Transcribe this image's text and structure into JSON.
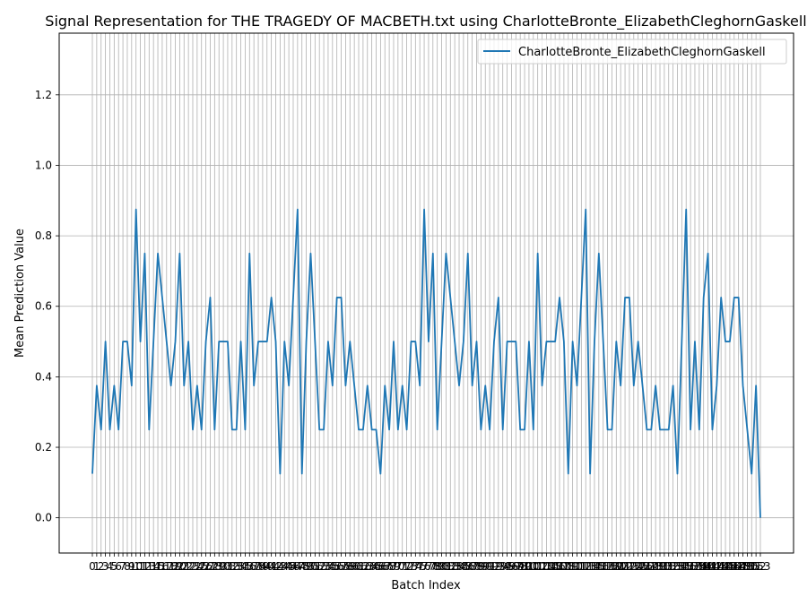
{
  "chart_data": {
    "type": "line",
    "title": "Signal Representation for THE TRAGEDY OF MACBETH.txt using CharlotteBronte_ElizabethCleghornGaskell",
    "xlabel": "Batch Index",
    "ylabel": "Mean Prediction Value",
    "ylim": [
      -0.1,
      1.375
    ],
    "yticks": [
      "0.0",
      "0.2",
      "0.4",
      "0.6",
      "0.8",
      "1.0",
      "1.2"
    ],
    "grid": true,
    "legend_position": "top-right",
    "series": [
      {
        "name": "CharlotteBronte_ElizabethCleghornGaskell",
        "color": "#1f77b4",
        "x": [
          0,
          1,
          2,
          3,
          4,
          5,
          6,
          7,
          8,
          9,
          10,
          11,
          12,
          13,
          14,
          15,
          16,
          17,
          18,
          19,
          20,
          21,
          22,
          23,
          24,
          25,
          26,
          27,
          28,
          29,
          30,
          31,
          32,
          33,
          34,
          35,
          36,
          37,
          38,
          39,
          40,
          41,
          42,
          43,
          44,
          45,
          46,
          47,
          48,
          49,
          50,
          51,
          52,
          53,
          54,
          55,
          56,
          57,
          58,
          59,
          60,
          61,
          62,
          63,
          64,
          65,
          66,
          67,
          68,
          69,
          70,
          71,
          72,
          73,
          74,
          75,
          76,
          77,
          78,
          79,
          80,
          81,
          82,
          83,
          84,
          85,
          86,
          87,
          88,
          89,
          90,
          91,
          92,
          93,
          94,
          95,
          96,
          97,
          98,
          99,
          100,
          101,
          102,
          103,
          104,
          105,
          106,
          107,
          108,
          109,
          110,
          111,
          112,
          113,
          114,
          115,
          116,
          117,
          118,
          119,
          120,
          121,
          122,
          123,
          124,
          125,
          126,
          127,
          128,
          129,
          130,
          131,
          132,
          133,
          134,
          135,
          136,
          137,
          138,
          139,
          140,
          141,
          142,
          143,
          144,
          145,
          146,
          147,
          148,
          149,
          150,
          151,
          152,
          153
        ],
        "values": [
          0.125,
          0.375,
          0.25,
          0.5,
          0.25,
          0.375,
          0.25,
          0.5,
          0.5,
          0.375,
          0.875,
          0.5,
          0.75,
          0.25,
          0.5,
          0.75,
          0.625,
          0.5,
          0.375,
          0.5,
          0.75,
          0.375,
          0.5,
          0.25,
          0.375,
          0.25,
          0.5,
          0.625,
          0.25,
          0.5,
          0.5,
          0.5,
          0.25,
          0.25,
          0.5,
          0.25,
          0.75,
          0.375,
          0.5,
          0.5,
          0.5,
          0.625,
          0.5,
          0.125,
          0.5,
          0.375,
          0.625,
          0.875,
          0.125,
          0.5,
          0.75,
          0.5,
          0.25,
          0.25,
          0.5,
          0.375,
          0.625,
          0.625,
          0.375,
          0.5,
          0.375,
          0.25,
          0.25,
          0.375,
          0.25,
          0.25,
          0.125,
          0.375,
          0.25,
          0.5,
          0.25,
          0.375,
          0.25,
          0.5,
          0.5,
          0.375,
          0.875,
          0.5,
          0.75,
          0.25,
          0.5,
          0.75,
          0.625,
          0.5,
          0.375,
          0.5,
          0.75,
          0.375,
          0.5,
          0.25,
          0.375,
          0.25,
          0.5,
          0.625,
          0.25,
          0.5,
          0.5,
          0.5,
          0.25,
          0.25,
          0.5,
          0.25,
          0.75,
          0.375,
          0.5,
          0.5,
          0.5,
          0.625,
          0.5,
          0.125,
          0.5,
          0.375,
          0.625,
          0.875,
          0.125,
          0.5,
          0.75,
          0.5,
          0.25,
          0.25,
          0.5,
          0.375,
          0.625,
          0.625,
          0.375,
          0.5,
          0.375,
          0.25,
          0.25,
          0.375,
          0.25,
          0.25,
          0.25,
          0.375,
          0.125,
          0.5,
          0.875,
          0.25,
          0.5,
          0.25,
          0.625,
          0.75,
          0.25,
          0.375,
          0.625,
          0.5,
          0.5,
          0.625,
          0.625,
          0.375,
          0.25,
          0.125,
          0.375,
          0.0
        ]
      }
    ]
  }
}
